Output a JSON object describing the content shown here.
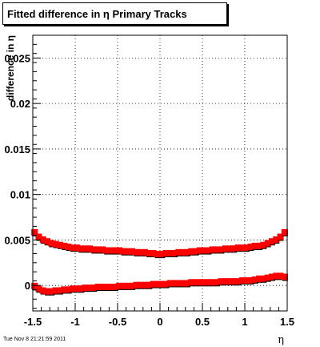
{
  "title": "Fitted difference in  η  Primary Tracks",
  "timestamp": "Tue Nov  8 21:21:59 2011",
  "chart_data": {
    "type": "scatter",
    "title": "Fitted difference in  η  Primary Tracks",
    "xlabel": "η",
    "ylabel": "difference in η",
    "xlim": [
      -1.5,
      1.5
    ],
    "ylim": [
      -0.0028,
      0.0275
    ],
    "grid": true,
    "legend": "none",
    "x_ticks": [
      "-1.5",
      "-1",
      "-0.5",
      "0",
      "0.5",
      "1",
      "1.5"
    ],
    "x_tick_values": [
      -1.5,
      -1,
      -0.5,
      0,
      0.5,
      1,
      1.5
    ],
    "y_ticks": [
      "0",
      "0.005",
      "0.01",
      "0.015",
      "0.02",
      "0.025"
    ],
    "y_tick_values": [
      0,
      0.005,
      0.01,
      0.015,
      0.02,
      0.025
    ],
    "series": [
      {
        "color": "#ff0000",
        "marker": "square",
        "x": [
          -1.475,
          -1.425,
          -1.375,
          -1.325,
          -1.275,
          -1.225,
          -1.175,
          -1.125,
          -1.075,
          -1.025,
          -0.975,
          -0.925,
          -0.875,
          -0.825,
          -0.775,
          -0.725,
          -0.675,
          -0.625,
          -0.575,
          -0.525,
          -0.475,
          -0.425,
          -0.375,
          -0.325,
          -0.275,
          -0.225,
          -0.175,
          -0.125,
          -0.075,
          -0.025,
          0.025,
          0.075,
          0.125,
          0.175,
          0.225,
          0.275,
          0.325,
          0.375,
          0.425,
          0.475,
          0.525,
          0.575,
          0.625,
          0.675,
          0.725,
          0.775,
          0.825,
          0.875,
          0.925,
          0.975,
          1.025,
          1.075,
          1.125,
          1.175,
          1.225,
          1.275,
          1.325,
          1.375,
          1.425,
          1.475
        ],
        "y": [
          0.0058,
          0.0053,
          0.005,
          0.0048,
          0.0046,
          0.0045,
          0.0044,
          0.0043,
          0.0042,
          0.0041,
          0.0041,
          0.004,
          0.004,
          0.004,
          0.0039,
          0.0039,
          0.0039,
          0.0038,
          0.0038,
          0.0038,
          0.0038,
          0.0037,
          0.0037,
          0.0037,
          0.0036,
          0.0036,
          0.0036,
          0.0035,
          0.0035,
          0.0034,
          0.0034,
          0.0035,
          0.0035,
          0.0035,
          0.0036,
          0.0036,
          0.0036,
          0.0037,
          0.0037,
          0.0038,
          0.0038,
          0.0038,
          0.0039,
          0.0039,
          0.0039,
          0.004,
          0.004,
          0.004,
          0.0041,
          0.0041,
          0.0041,
          0.0042,
          0.0043,
          0.0043,
          0.0044,
          0.0046,
          0.0048,
          0.005,
          0.0053,
          0.0058
        ]
      },
      {
        "color": "#ff0000",
        "marker": "square",
        "x": [
          -1.475,
          -1.425,
          -1.375,
          -1.325,
          -1.275,
          -1.225,
          -1.175,
          -1.125,
          -1.075,
          -1.025,
          -0.975,
          -0.925,
          -0.875,
          -0.825,
          -0.775,
          -0.725,
          -0.675,
          -0.625,
          -0.575,
          -0.525,
          -0.475,
          -0.425,
          -0.375,
          -0.325,
          -0.275,
          -0.225,
          -0.175,
          -0.125,
          -0.075,
          -0.025,
          0.025,
          0.075,
          0.125,
          0.175,
          0.225,
          0.275,
          0.325,
          0.375,
          0.425,
          0.475,
          0.525,
          0.575,
          0.625,
          0.675,
          0.725,
          0.775,
          0.825,
          0.875,
          0.925,
          0.975,
          1.025,
          1.075,
          1.125,
          1.175,
          1.225,
          1.275,
          1.325,
          1.375,
          1.425,
          1.475
        ],
        "y": [
          -0.0001,
          -0.0004,
          -0.0006,
          -0.0007,
          -0.0007,
          -0.0006,
          -0.0006,
          -0.0005,
          -0.0005,
          -0.0004,
          -0.0004,
          -0.0004,
          -0.0003,
          -0.0003,
          -0.0003,
          -0.0002,
          -0.0002,
          -0.0002,
          -0.0002,
          -0.0002,
          -0.0001,
          -0.0001,
          -0.0001,
          -0.0001,
          0.0,
          0.0,
          0.0,
          0.0,
          0.0001,
          0.0001,
          0.0001,
          0.0001,
          0.0002,
          0.0002,
          0.0002,
          0.0002,
          0.0002,
          0.0003,
          0.0003,
          0.0003,
          0.0003,
          0.0003,
          0.0003,
          0.0003,
          0.0004,
          0.0004,
          0.0004,
          0.0004,
          0.0004,
          0.0005,
          0.0005,
          0.0005,
          0.0006,
          0.0007,
          0.0007,
          0.0008,
          0.0009,
          0.001,
          0.001,
          0.0009
        ]
      }
    ]
  }
}
